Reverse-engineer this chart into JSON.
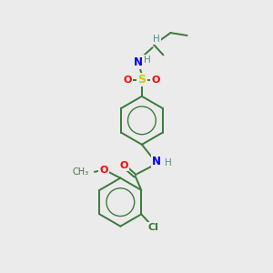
{
  "background_color": "#ebebeb",
  "bond_color": "#3a7a3a",
  "figsize": [
    3.0,
    3.0
  ],
  "dpi": 100,
  "colors": {
    "S": "#cccc00",
    "O": "#ff0000",
    "N": "#0000ee",
    "H": "#5a8a8a",
    "Cl": "#3a7a3a",
    "C": "#3a7a3a"
  },
  "lw": 1.4
}
